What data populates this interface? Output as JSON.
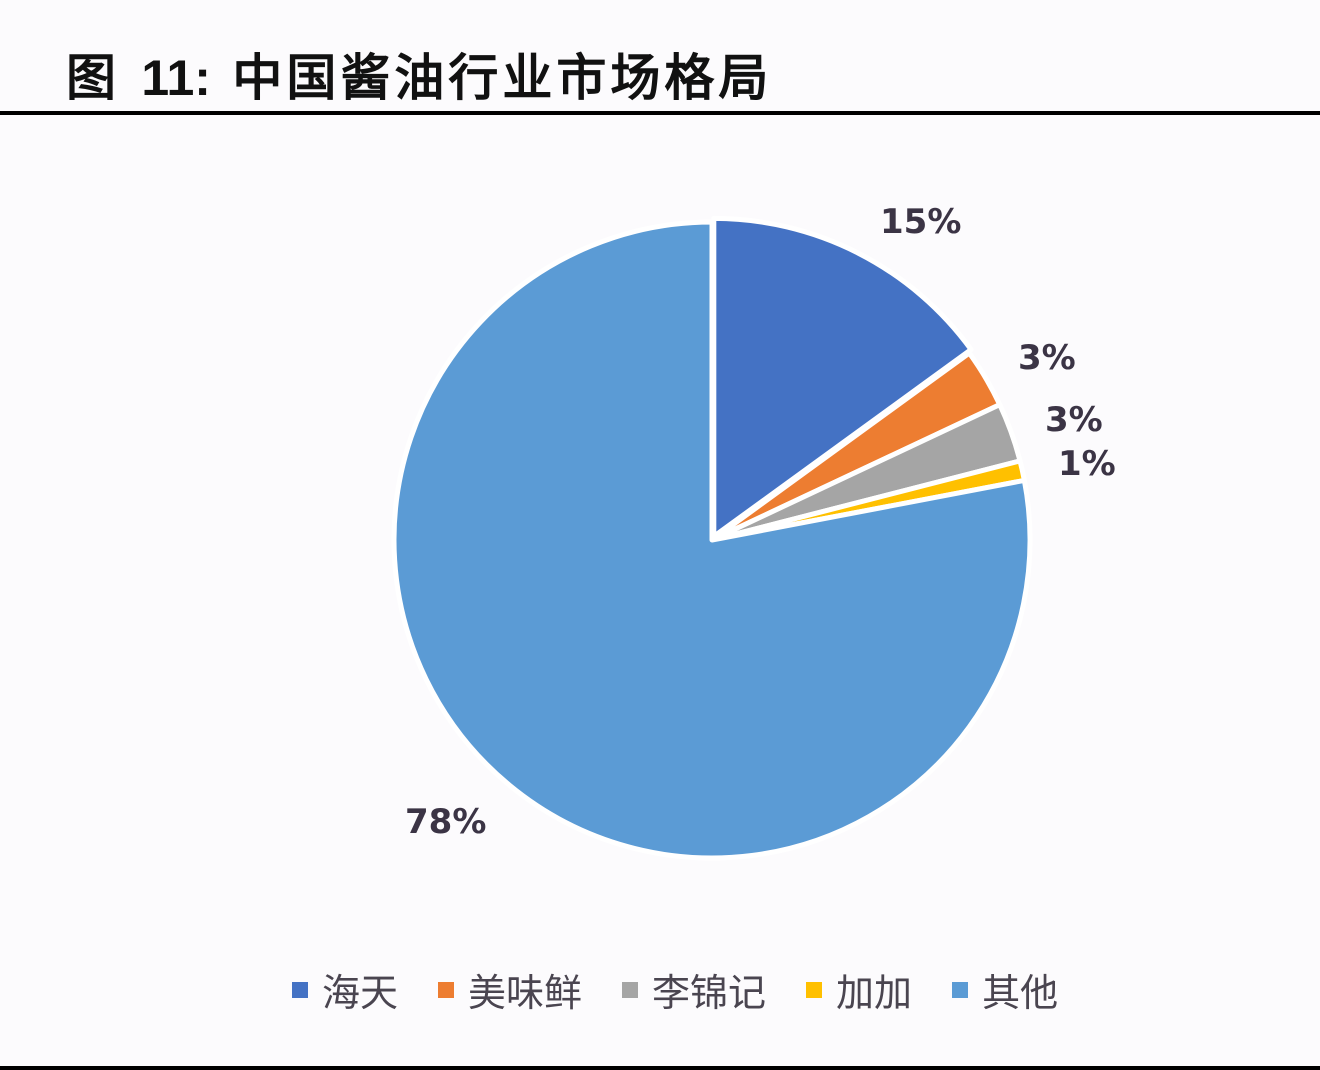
{
  "title": {
    "prefix": "图",
    "number": "11:",
    "text": "中国酱油行业市场格局"
  },
  "chart_data": {
    "type": "pie",
    "title": "图 11：中国酱油行业市场格局",
    "categories": [
      "海天",
      "美味鲜",
      "李锦记",
      "加加",
      "其他"
    ],
    "values": [
      15,
      3,
      3,
      1,
      78
    ],
    "labels": [
      "15%",
      "3%",
      "3%",
      "1%",
      "78%"
    ],
    "colors": [
      "#4472c4",
      "#ed7d31",
      "#a5a5a5",
      "#ffc000",
      "#5b9bd5"
    ],
    "start_angle": "12 o'clock, clockwise",
    "legend_position": "bottom",
    "unit": "%"
  },
  "legend": [
    {
      "label": "海天",
      "color": "#4472c4"
    },
    {
      "label": "美味鲜",
      "color": "#ed7d31"
    },
    {
      "label": "李锦记",
      "color": "#a5a5a5"
    },
    {
      "label": "加加",
      "color": "#ffc000"
    },
    {
      "label": "其他",
      "color": "#5b9bd5"
    }
  ]
}
